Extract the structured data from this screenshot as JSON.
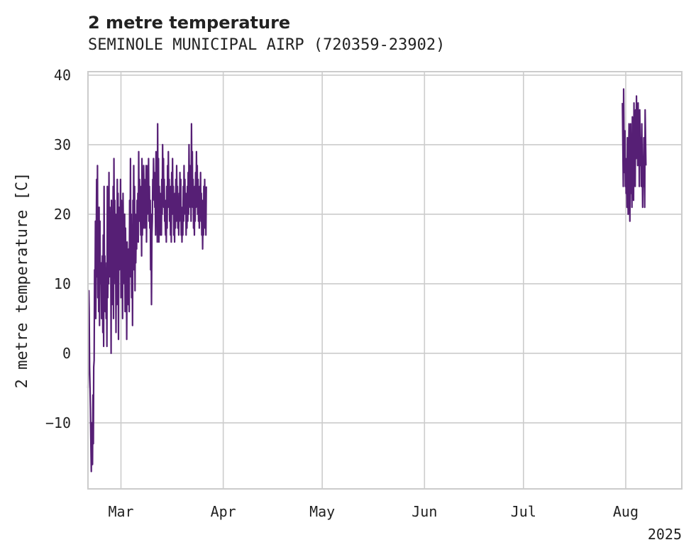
{
  "chart_data": {
    "type": "line",
    "title": "2 metre temperature",
    "subtitle": "SEMINOLE MUNICIPAL AIRP (720359-23902)",
    "ylabel": "2 metre temperature [C]",
    "xlabel": "",
    "x_tick_labels": [
      "Mar",
      "Apr",
      "May",
      "Jun",
      "Jul",
      "Aug"
    ],
    "x_year_label": "2025",
    "y_ticks": [
      -10,
      0,
      10,
      20,
      30,
      40
    ],
    "ylim": [
      -19.5,
      40.5
    ],
    "xlim": [
      "2025-02-19",
      "2025-08-18"
    ],
    "grid": true,
    "color": "#561f75",
    "series": [
      {
        "segments": [
          {
            "start": "2025-02-19",
            "step_hours": 3,
            "values": [
              -5,
              -1,
              9,
              6,
              -2,
              -5,
              -8,
              -13,
              -17,
              -10,
              -14,
              -16,
              -6,
              -13,
              -2,
              -1,
              12,
              8,
              19,
              5,
              15,
              25,
              11,
              27,
              8,
              20,
              6,
              21,
              4,
              19,
              10,
              12,
              13,
              5,
              8,
              14,
              3,
              17,
              1,
              24,
              10,
              14,
              6,
              11,
              5,
              13,
              1,
              24,
              8,
              15,
              10,
              26,
              11,
              21,
              13,
              17,
              0,
              22,
              8,
              11,
              7,
              24,
              5,
              28,
              16,
              22,
              10,
              16,
              3,
              20,
              7,
              25,
              15,
              23,
              2,
              21,
              12,
              18,
              16,
              25,
              8,
              22,
              13,
              19,
              5,
              23,
              17,
              14,
              10,
              20,
              6,
              18,
              11,
              15,
              2,
              16,
              11,
              12,
              7,
              15,
              6,
              22,
              13,
              28,
              11,
              20,
              8,
              17,
              4,
              22,
              16,
              27,
              12,
              24,
              9,
              20,
              13,
              18,
              15,
              22,
              17,
              23,
              16,
              29,
              19,
              25,
              20,
              21,
              17,
              24,
              14,
              28,
              17,
              24,
              18,
              27,
              21,
              25,
              18,
              22,
              19,
              27,
              16,
              24,
              20,
              27,
              22,
              28,
              19,
              24,
              18,
              22,
              12,
              20,
              7,
              17,
              19,
              25,
              22,
              28,
              23,
              26,
              21,
              23,
              17,
              29,
              21,
              26,
              16,
              33,
              19,
              28,
              16,
              24,
              19,
              23,
              17,
              21,
              17,
              25,
              20,
              30,
              23,
              28,
              21,
              25,
              19,
              20,
              17,
              22,
              16,
              24,
              18,
              27,
              21,
              29,
              22,
              25,
              19,
              23,
              17,
              24,
              16,
              26,
              20,
              28,
              22,
              24,
              17,
              20,
              16,
              23,
              18,
              25,
              19,
              27,
              21,
              24,
              18,
              22,
              17,
              23,
              19,
              26,
              20,
              25,
              17,
              21,
              16,
              20,
              17,
              24,
              19,
              27,
              21,
              25,
              20,
              23,
              17,
              21,
              18,
              24,
              19,
              26,
              20,
              30,
              23,
              27,
              21,
              25,
              19,
              33,
              23,
              29,
              21,
              25,
              18,
              22,
              17,
              24,
              19,
              26,
              21,
              29,
              23,
              27,
              20,
              25,
              19,
              22,
              18,
              24,
              20,
              26,
              19,
              23,
              17,
              22,
              15,
              21,
              17,
              24,
              19,
              25,
              18,
              23,
              17,
              24
            ]
          },
          {
            "start": "2025-07-31",
            "step_hours": 3,
            "values": [
              36,
              30,
              24,
              38,
              30,
              26,
              32,
              24,
              28,
              23,
              26,
              21,
              31,
              25,
              20,
              28,
              33,
              26,
              19,
              28,
              33,
              23,
              30,
              21,
              34,
              25,
              31,
              22,
              36,
              27,
              33,
              24,
              35,
              28,
              37,
              30,
              34,
              27,
              36,
              29,
              33,
              24,
              35,
              30,
              27,
              31,
              24,
              33,
              27,
              21,
              28,
              24,
              31,
              27,
              21,
              35,
              31,
              27
            ]
          }
        ]
      }
    ]
  }
}
